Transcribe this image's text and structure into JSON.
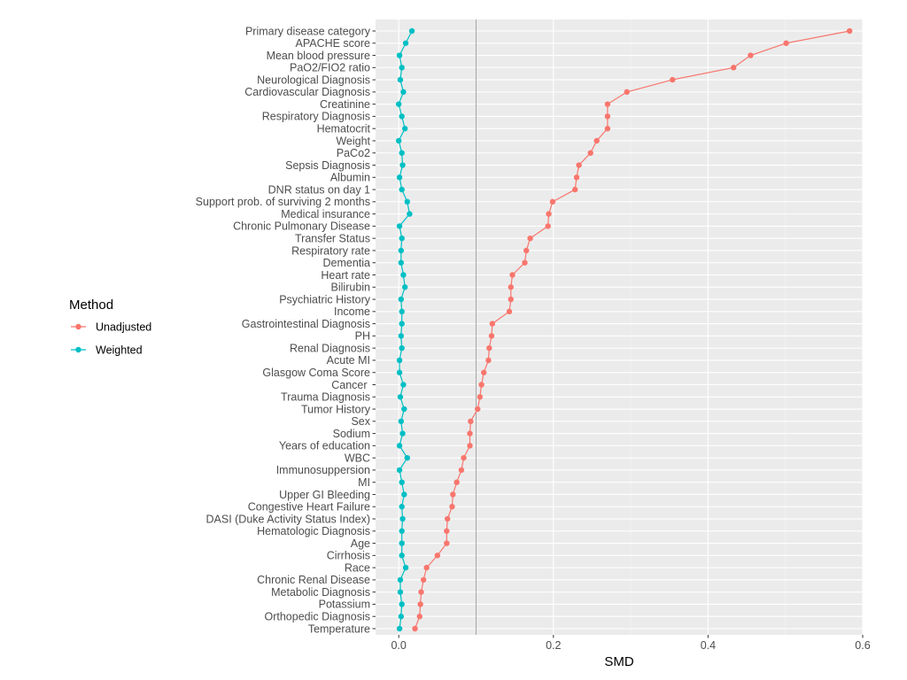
{
  "chart_data": {
    "type": "line",
    "xlabel": "SMD",
    "ylabel": "",
    "xlim": [
      -0.03,
      0.6
    ],
    "xticks": [
      0.0,
      0.2,
      0.4,
      0.6
    ],
    "xtick_labels": [
      "0.0",
      "0.2",
      "0.4",
      "0.6"
    ],
    "reference_line": 0.1,
    "legend": {
      "title": "Method",
      "position": "left",
      "entries": [
        "Unadjusted",
        "Weighted"
      ]
    },
    "colors": {
      "Unadjusted": "#F8766D",
      "Weighted": "#00BFC4",
      "reference": "#a6a6a6"
    },
    "categories": [
      "Primary disease category",
      "APACHE score",
      "Mean blood pressure",
      "PaO2/FIO2 ratio",
      "Neurological Diagnosis",
      "Cardiovascular Diagnosis",
      "Creatinine",
      "Respiratory Diagnosis",
      "Hematocrit",
      "Weight",
      "PaCo2",
      "Sepsis Diagnosis",
      "Albumin",
      "DNR status on day 1",
      "Support prob. of surviving 2 months",
      "Medical insurance",
      "Chronic Pulmonary Disease",
      "Transfer Status",
      "Respiratory rate",
      "Dementia",
      "Heart rate",
      "Bilirubin",
      "Psychiatric History",
      "Income",
      "Gastrointestinal Diagnosis",
      "PH",
      "Renal Diagnosis",
      "Acute MI",
      "Glasgow Coma Score",
      "Cancer ",
      "Trauma Diagnosis",
      "Tumor History",
      "Sex",
      "Sodium",
      "Years of education",
      "WBC",
      "Immunosuppersion",
      "MI",
      "Upper GI Bleeding",
      "Congestive Heart Failure",
      "DASI (Duke Activity Status Index)",
      "Hematologic Diagnosis",
      "Age",
      "Cirrhosis",
      "Race",
      "Chronic Renal Disease",
      "Metabolic Diagnosis",
      "Potassium",
      "Orthopedic Diagnosis",
      "Temperature"
    ],
    "series": [
      {
        "name": "Unadjusted",
        "values": [
          0.583,
          0.501,
          0.455,
          0.433,
          0.354,
          0.295,
          0.27,
          0.27,
          0.27,
          0.256,
          0.248,
          0.233,
          0.23,
          0.228,
          0.199,
          0.194,
          0.193,
          0.17,
          0.165,
          0.163,
          0.147,
          0.145,
          0.145,
          0.143,
          0.121,
          0.12,
          0.117,
          0.116,
          0.11,
          0.107,
          0.105,
          0.102,
          0.093,
          0.092,
          0.092,
          0.084,
          0.081,
          0.075,
          0.07,
          0.069,
          0.063,
          0.062,
          0.062,
          0.05,
          0.036,
          0.032,
          0.029,
          0.028,
          0.027,
          0.021
        ]
      },
      {
        "name": "Weighted",
        "values": [
          0.017,
          0.009,
          0.001,
          0.004,
          0.002,
          0.006,
          0.0,
          0.004,
          0.008,
          0.0,
          0.004,
          0.005,
          0.001,
          0.004,
          0.011,
          0.014,
          0.001,
          0.004,
          0.003,
          0.003,
          0.006,
          0.008,
          0.003,
          0.004,
          0.004,
          0.003,
          0.004,
          0.001,
          0.001,
          0.006,
          0.002,
          0.007,
          0.003,
          0.005,
          0.001,
          0.011,
          0.001,
          0.004,
          0.007,
          0.004,
          0.005,
          0.004,
          0.004,
          0.004,
          0.009,
          0.002,
          0.002,
          0.004,
          0.003,
          0.001
        ]
      }
    ]
  }
}
